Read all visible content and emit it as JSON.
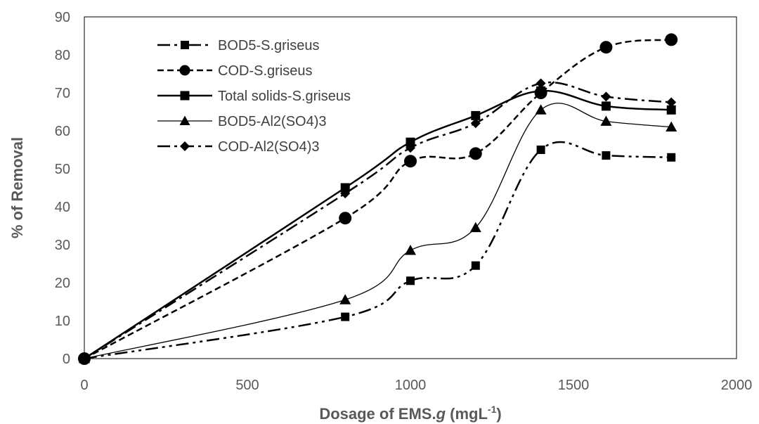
{
  "chart_data": {
    "type": "line",
    "title": "",
    "xlabel": {
      "prefix": "Dosage of EMS.",
      "italic": "g",
      "middle": " (mgL",
      "sup": "-1",
      "suffix": ")"
    },
    "ylabel": "% of  Removal",
    "xlim": [
      0,
      2000
    ],
    "ylim": [
      0,
      90
    ],
    "xticks": [
      0,
      500,
      1000,
      1500,
      2000
    ],
    "yticks": [
      0,
      10,
      20,
      30,
      40,
      50,
      60,
      70,
      80,
      90
    ],
    "grid": false,
    "legend_position": "top-left",
    "x": [
      0,
      800,
      1000,
      1200,
      1400,
      1600,
      1800
    ],
    "series": [
      {
        "name": "BOD5-S.griseus",
        "values": [
          0,
          11,
          20.5,
          24.5,
          55,
          53.5,
          53
        ],
        "marker": "square",
        "dash": "long-dash-dot-dot",
        "stroke": 2.5,
        "marker_size": 12
      },
      {
        "name": "COD-S.griseus",
        "values": [
          0,
          37,
          52,
          54,
          70,
          82,
          84
        ],
        "marker": "circle",
        "dash": "dashed",
        "stroke": 2.5,
        "marker_size": 18
      },
      {
        "name": "Total solids-S.griseus",
        "values": [
          0,
          45,
          57,
          64,
          70.5,
          66.5,
          65.5
        ],
        "marker": "square",
        "dash": "solid",
        "stroke": 2.5,
        "marker_size": 13
      },
      {
        "name": "BOD5-Al2(SO4)3",
        "values": [
          0,
          15.5,
          28.5,
          34.5,
          65.5,
          62.5,
          61
        ],
        "marker": "triangle",
        "dash": "solid",
        "stroke": 1.3,
        "marker_size": 16
      },
      {
        "name": "COD-Al2(SO4)3",
        "values": [
          0,
          43.5,
          55.5,
          62,
          72.5,
          69,
          67.5
        ],
        "marker": "diamond",
        "dash": "long-dash-dot",
        "stroke": 2.5,
        "marker_size": 14
      }
    ],
    "colors": {
      "line": "#000000",
      "axis_text": "#595959",
      "frame": "#000000"
    }
  }
}
